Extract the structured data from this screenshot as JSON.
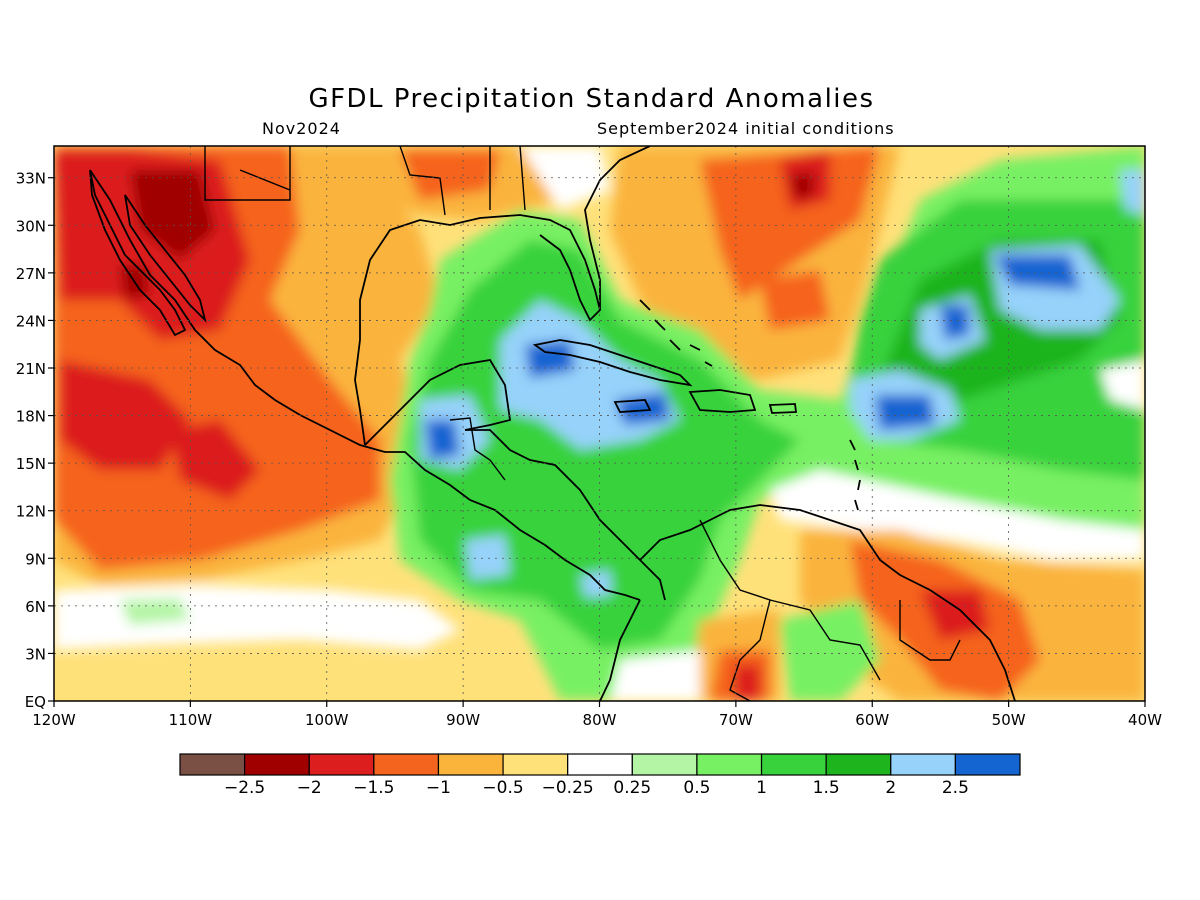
{
  "title": "GFDL Precipitation Standard Anomalies",
  "subtitle_left": "Nov2024",
  "subtitle_right": "September2024 initial conditions",
  "map": {
    "lon_range": [
      -120,
      -40
    ],
    "lat_range": [
      0,
      35
    ],
    "lat_ticks": [
      {
        "value": 33,
        "label": "33N"
      },
      {
        "value": 30,
        "label": "30N"
      },
      {
        "value": 27,
        "label": "27N"
      },
      {
        "value": 24,
        "label": "24N"
      },
      {
        "value": 21,
        "label": "21N"
      },
      {
        "value": 18,
        "label": "18N"
      },
      {
        "value": 15,
        "label": "15N"
      },
      {
        "value": 12,
        "label": "12N"
      },
      {
        "value": 9,
        "label": "9N"
      },
      {
        "value": 6,
        "label": "6N"
      },
      {
        "value": 3,
        "label": "3N"
      },
      {
        "value": 0,
        "label": "EQ"
      }
    ],
    "lon_ticks": [
      {
        "value": -120,
        "label": "120W"
      },
      {
        "value": -110,
        "label": "110W"
      },
      {
        "value": -100,
        "label": "100W"
      },
      {
        "value": -90,
        "label": "90W"
      },
      {
        "value": -80,
        "label": "80W"
      },
      {
        "value": -70,
        "label": "70W"
      },
      {
        "value": -60,
        "label": "60W"
      },
      {
        "value": -50,
        "label": "50W"
      },
      {
        "value": -40,
        "label": "40W"
      }
    ]
  },
  "legend": {
    "colors": [
      "#7b5044",
      "#a00000",
      "#dc1e1e",
      "#f5641e",
      "#fab43c",
      "#ffe17a",
      "#ffffff",
      "#b4f5a5",
      "#78f064",
      "#37d23c",
      "#1eb41e",
      "#96d2fa",
      "#1464d2"
    ],
    "labels": [
      "−2.5",
      "−2",
      "−1.5",
      "−1",
      "−0.5",
      "−0.25",
      "0.25",
      "0.5",
      "1",
      "1.5",
      "2",
      "2.5"
    ]
  }
}
